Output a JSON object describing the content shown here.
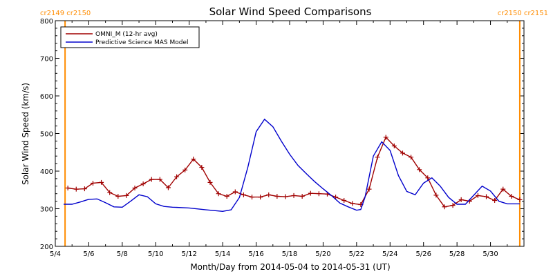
{
  "chart_data": {
    "type": "line",
    "title": "Solar Wind Speed Comparisons",
    "xlabel": "Month/Day from 2014-05-04 to 2014-05-31 (UT)",
    "ylabel": "Solar Wind Speed (km/s)",
    "xlim": [
      "2014-05-04T00:00",
      "2014-06-01T00:00"
    ],
    "ylim": [
      200,
      800
    ],
    "x_ticks": [
      {
        "x": "2014-05-04",
        "label": "5/4"
      },
      {
        "x": "2014-05-06",
        "label": "5/6"
      },
      {
        "x": "2014-05-08",
        "label": "5/8"
      },
      {
        "x": "2014-05-10",
        "label": "5/10"
      },
      {
        "x": "2014-05-12",
        "label": "5/12"
      },
      {
        "x": "2014-05-14",
        "label": "5/14"
      },
      {
        "x": "2014-05-16",
        "label": "5/16"
      },
      {
        "x": "2014-05-18",
        "label": "5/18"
      },
      {
        "x": "2014-05-20",
        "label": "5/20"
      },
      {
        "x": "2014-05-22",
        "label": "5/22"
      },
      {
        "x": "2014-05-24",
        "label": "5/24"
      },
      {
        "x": "2014-05-26",
        "label": "5/26"
      },
      {
        "x": "2014-05-28",
        "label": "5/28"
      },
      {
        "x": "2014-05-30",
        "label": "5/30"
      }
    ],
    "y_ticks": [
      200,
      300,
      400,
      500,
      600,
      700,
      800
    ],
    "carrington_markers": [
      {
        "x": "2014-05-04T14:00",
        "color": "#ff8c00"
      },
      {
        "x": "2014-05-31T18:00",
        "color": "#ff8c00"
      }
    ],
    "corner_labels": {
      "left": "cr2149  cr2150",
      "right": "cr2150  cr2151"
    },
    "legend": {
      "placement": "top-left",
      "border": true
    },
    "series": [
      {
        "name": "OMNI_M (12-hr avg)",
        "color": "#a00000",
        "marker": "+",
        "points": [
          [
            "2014-05-04T18:00",
            355
          ],
          [
            "2014-05-05T06:00",
            352
          ],
          [
            "2014-05-05T18:00",
            353
          ],
          [
            "2014-05-06T06:00",
            368
          ],
          [
            "2014-05-06T18:00",
            370
          ],
          [
            "2014-05-07T06:00",
            343
          ],
          [
            "2014-05-07T18:00",
            333
          ],
          [
            "2014-05-08T06:00",
            335
          ],
          [
            "2014-05-08T18:00",
            355
          ],
          [
            "2014-05-09T06:00",
            366
          ],
          [
            "2014-05-09T18:00",
            378
          ],
          [
            "2014-05-10T06:00",
            378
          ],
          [
            "2014-05-10T18:00",
            356
          ],
          [
            "2014-05-11T06:00",
            385
          ],
          [
            "2014-05-11T18:00",
            403
          ],
          [
            "2014-05-12T06:00",
            432
          ],
          [
            "2014-05-12T18:00",
            410
          ],
          [
            "2014-05-13T06:00",
            370
          ],
          [
            "2014-05-13T18:00",
            340
          ],
          [
            "2014-05-14T06:00",
            333
          ],
          [
            "2014-05-14T18:00",
            345
          ],
          [
            "2014-05-15T06:00",
            337
          ],
          [
            "2014-05-15T18:00",
            331
          ],
          [
            "2014-05-16T06:00",
            331
          ],
          [
            "2014-05-16T18:00",
            337
          ],
          [
            "2014-05-17T06:00",
            333
          ],
          [
            "2014-05-17T18:00",
            332
          ],
          [
            "2014-05-18T06:00",
            335
          ],
          [
            "2014-05-18T18:00",
            333
          ],
          [
            "2014-05-19T06:00",
            341
          ],
          [
            "2014-05-19T18:00",
            340
          ],
          [
            "2014-05-20T06:00",
            339
          ],
          [
            "2014-05-20T18:00",
            331
          ],
          [
            "2014-05-21T06:00",
            322
          ],
          [
            "2014-05-21T18:00",
            314
          ],
          [
            "2014-05-22T06:00",
            311
          ],
          [
            "2014-05-22T18:00",
            352
          ],
          [
            "2014-05-23T06:00",
            437
          ],
          [
            "2014-05-23T18:00",
            490
          ],
          [
            "2014-05-24T06:00",
            467
          ],
          [
            "2014-05-24T18:00",
            448
          ],
          [
            "2014-05-25T06:00",
            437
          ],
          [
            "2014-05-25T18:00",
            404
          ],
          [
            "2014-05-26T06:00",
            382
          ],
          [
            "2014-05-26T18:00",
            336
          ],
          [
            "2014-05-27T06:00",
            305
          ],
          [
            "2014-05-27T18:00",
            309
          ],
          [
            "2014-05-28T06:00",
            324
          ],
          [
            "2014-05-28T18:00",
            320
          ],
          [
            "2014-05-29T06:00",
            335
          ],
          [
            "2014-05-29T18:00",
            332
          ],
          [
            "2014-05-30T06:00",
            322
          ],
          [
            "2014-05-30T18:00",
            352
          ],
          [
            "2014-05-31T06:00",
            333
          ],
          [
            "2014-05-31T18:00",
            324
          ]
        ]
      },
      {
        "name": "Predictive Science MAS Model",
        "color": "#0000cc",
        "marker": "none",
        "points": [
          [
            "2014-05-04T12:00",
            312
          ],
          [
            "2014-05-05T00:00",
            312
          ],
          [
            "2014-05-05T12:00",
            318
          ],
          [
            "2014-05-06T00:00",
            325
          ],
          [
            "2014-05-06T12:00",
            326
          ],
          [
            "2014-05-07T00:00",
            316
          ],
          [
            "2014-05-07T12:00",
            305
          ],
          [
            "2014-05-08T00:00",
            304
          ],
          [
            "2014-05-08T12:00",
            320
          ],
          [
            "2014-05-09T00:00",
            337
          ],
          [
            "2014-05-09T12:00",
            332
          ],
          [
            "2014-05-10T00:00",
            313
          ],
          [
            "2014-05-10T12:00",
            306
          ],
          [
            "2014-05-11T00:00",
            304
          ],
          [
            "2014-05-12T00:00",
            302
          ],
          [
            "2014-05-13T00:00",
            297
          ],
          [
            "2014-05-14T00:00",
            293
          ],
          [
            "2014-05-14T12:00",
            297
          ],
          [
            "2014-05-15T00:00",
            330
          ],
          [
            "2014-05-15T12:00",
            410
          ],
          [
            "2014-05-16T00:00",
            505
          ],
          [
            "2014-05-16T12:00",
            538
          ],
          [
            "2014-05-17T00:00",
            518
          ],
          [
            "2014-05-17T12:00",
            480
          ],
          [
            "2014-05-18T00:00",
            445
          ],
          [
            "2014-05-18T12:00",
            415
          ],
          [
            "2014-05-19T00:00",
            393
          ],
          [
            "2014-05-19T12:00",
            372
          ],
          [
            "2014-05-20T00:00",
            353
          ],
          [
            "2014-05-20T12:00",
            335
          ],
          [
            "2014-05-21T00:00",
            315
          ],
          [
            "2014-05-21T12:00",
            305
          ],
          [
            "2014-05-22T00:00",
            296
          ],
          [
            "2014-05-22T06:00",
            298
          ],
          [
            "2014-05-22T12:00",
            330
          ],
          [
            "2014-05-23T00:00",
            440
          ],
          [
            "2014-05-23T12:00",
            478
          ],
          [
            "2014-05-24T00:00",
            455
          ],
          [
            "2014-05-24T12:00",
            388
          ],
          [
            "2014-05-25T00:00",
            346
          ],
          [
            "2014-05-25T12:00",
            337
          ],
          [
            "2014-05-26T00:00",
            368
          ],
          [
            "2014-05-26T12:00",
            382
          ],
          [
            "2014-05-27T00:00",
            360
          ],
          [
            "2014-05-27T12:00",
            330
          ],
          [
            "2014-05-28T00:00",
            312
          ],
          [
            "2014-05-28T12:00",
            312
          ],
          [
            "2014-05-29T00:00",
            336
          ],
          [
            "2014-05-29T12:00",
            360
          ],
          [
            "2014-05-30T00:00",
            347
          ],
          [
            "2014-05-30T12:00",
            320
          ],
          [
            "2014-05-31T00:00",
            313
          ],
          [
            "2014-05-31T18:00",
            313
          ]
        ]
      }
    ]
  }
}
